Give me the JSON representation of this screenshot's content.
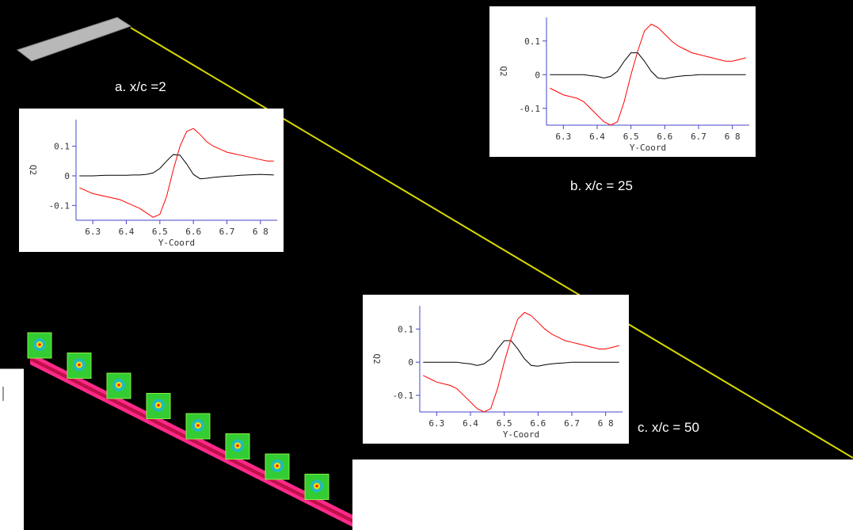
{
  "chart_data": [
    {
      "type": "line",
      "caption": "a.  x/c =2",
      "xlabel": "Y-Coord",
      "ylabel": "Q2",
      "x": [
        6.26,
        6.28,
        6.3,
        6.32,
        6.34,
        6.36,
        6.38,
        6.4,
        6.42,
        6.44,
        6.46,
        6.48,
        6.5,
        6.52,
        6.54,
        6.56,
        6.58,
        6.6,
        6.62,
        6.64,
        6.66,
        6.68,
        6.7,
        6.72,
        6.74,
        6.76,
        6.78,
        6.8,
        6.82,
        6.84
      ],
      "series": [
        {
          "color": "#000000",
          "values": [
            0,
            0,
            0,
            0.001,
            0.002,
            0.002,
            0.002,
            0.002,
            0.003,
            0.003,
            0.005,
            0.01,
            0.025,
            0.05,
            0.072,
            0.07,
            0.04,
            0.005,
            -0.01,
            -0.008,
            -0.005,
            -0.003,
            -0.001,
            0,
            0.002,
            0.003,
            0.004,
            0.005,
            0.004,
            0.003
          ]
        },
        {
          "color": "#ff0000",
          "values": [
            -0.04,
            -0.05,
            -0.06,
            -0.065,
            -0.07,
            -0.075,
            -0.08,
            -0.09,
            -0.1,
            -0.11,
            -0.125,
            -0.14,
            -0.13,
            -0.07,
            0.02,
            0.1,
            0.15,
            0.16,
            0.14,
            0.115,
            0.1,
            0.09,
            0.08,
            0.075,
            0.07,
            0.065,
            0.06,
            0.055,
            0.05,
            0.05
          ]
        }
      ],
      "xlim": [
        6.25,
        6.85
      ],
      "ylim": [
        -0.15,
        0.19
      ],
      "xticks": [
        6.3,
        6.4,
        6.5,
        6.6,
        6.7,
        {
          "value": 6.8,
          "label": "6 8"
        }
      ],
      "yticks": [
        0.1,
        0,
        -0.1
      ]
    },
    {
      "type": "line",
      "caption": "b.  x/c = 25",
      "xlabel": "Y-Coord",
      "ylabel": "Q2",
      "x": [
        6.26,
        6.28,
        6.3,
        6.32,
        6.34,
        6.36,
        6.38,
        6.4,
        6.42,
        6.44,
        6.46,
        6.48,
        6.5,
        6.52,
        6.54,
        6.56,
        6.58,
        6.6,
        6.62,
        6.64,
        6.66,
        6.68,
        6.7,
        6.72,
        6.74,
        6.76,
        6.78,
        6.8,
        6.82,
        6.84
      ],
      "series": [
        {
          "color": "#000000",
          "values": [
            0,
            0,
            0,
            0,
            0,
            0,
            -0.003,
            -0.005,
            -0.01,
            -0.005,
            0.01,
            0.04,
            0.065,
            0.065,
            0.04,
            0.01,
            -0.01,
            -0.012,
            -0.008,
            -0.005,
            -0.003,
            -0.002,
            0,
            0,
            0,
            0,
            0,
            0,
            0,
            0
          ]
        },
        {
          "color": "#ff0000",
          "values": [
            -0.04,
            -0.05,
            -0.06,
            -0.065,
            -0.07,
            -0.08,
            -0.1,
            -0.12,
            -0.14,
            -0.15,
            -0.14,
            -0.08,
            0,
            0.07,
            0.13,
            0.15,
            0.14,
            0.12,
            0.1,
            0.085,
            0.075,
            0.065,
            0.06,
            0.055,
            0.05,
            0.045,
            0.04,
            0.04,
            0.045,
            0.05
          ]
        }
      ],
      "xlim": [
        6.25,
        6.85
      ],
      "ylim": [
        -0.15,
        0.17
      ],
      "xticks": [
        6.3,
        6.4,
        6.5,
        6.6,
        6.7,
        {
          "value": 6.8,
          "label": "6 8"
        }
      ],
      "yticks": [
        0.1,
        0,
        -0.1
      ]
    },
    {
      "type": "line",
      "caption": "c.  x/c = 50",
      "xlabel": "Y-Coord",
      "ylabel": "Q2",
      "x": [
        6.26,
        6.28,
        6.3,
        6.32,
        6.34,
        6.36,
        6.38,
        6.4,
        6.42,
        6.44,
        6.46,
        6.48,
        6.5,
        6.52,
        6.54,
        6.56,
        6.58,
        6.6,
        6.62,
        6.64,
        6.66,
        6.68,
        6.7,
        6.72,
        6.74,
        6.76,
        6.78,
        6.8,
        6.82,
        6.84
      ],
      "series": [
        {
          "color": "#000000",
          "values": [
            0,
            0,
            0,
            0,
            0,
            0,
            -0.003,
            -0.005,
            -0.01,
            -0.005,
            0.01,
            0.04,
            0.065,
            0.065,
            0.04,
            0.01,
            -0.01,
            -0.012,
            -0.008,
            -0.005,
            -0.003,
            -0.002,
            0,
            0,
            0,
            0,
            0,
            0,
            0,
            0
          ]
        },
        {
          "color": "#ff0000",
          "values": [
            -0.04,
            -0.05,
            -0.06,
            -0.065,
            -0.07,
            -0.08,
            -0.1,
            -0.12,
            -0.14,
            -0.15,
            -0.14,
            -0.08,
            0,
            0.07,
            0.13,
            0.15,
            0.14,
            0.12,
            0.1,
            0.085,
            0.075,
            0.065,
            0.06,
            0.055,
            0.05,
            0.045,
            0.04,
            0.04,
            0.045,
            0.05
          ]
        }
      ],
      "xlim": [
        6.25,
        6.85
      ],
      "ylim": [
        -0.15,
        0.17
      ],
      "xticks": [
        6.3,
        6.4,
        6.5,
        6.6,
        6.7,
        {
          "value": 6.8,
          "label": "6 8"
        }
      ],
      "yticks": [
        0.1,
        0,
        -0.1
      ]
    }
  ]
}
